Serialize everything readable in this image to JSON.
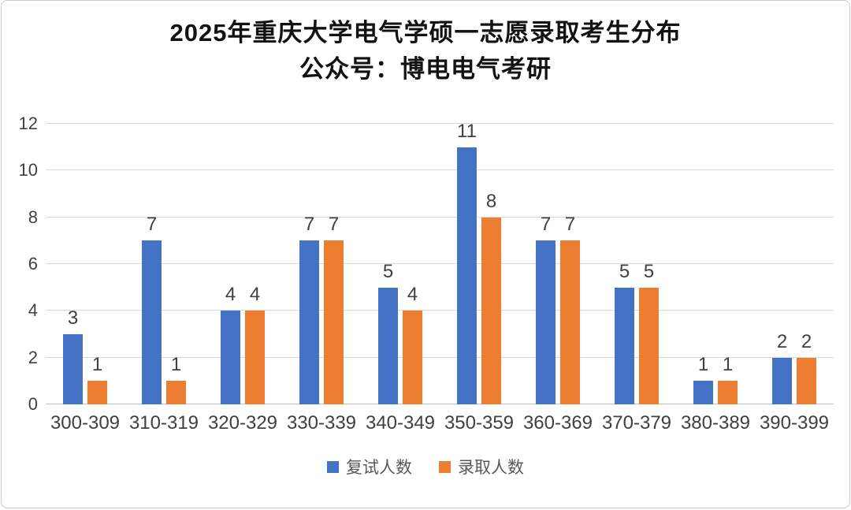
{
  "chart_data": {
    "type": "bar",
    "title": "2025年重庆大学电气学硕一志愿录取考生分布",
    "subtitle": "公众号：博电电气考研",
    "categories": [
      "300-309",
      "310-319",
      "320-329",
      "330-339",
      "340-349",
      "350-359",
      "360-369",
      "370-379",
      "380-389",
      "390-399"
    ],
    "series": [
      {
        "name": "复试人数",
        "color": "#4472C4",
        "values": [
          3,
          7,
          4,
          7,
          5,
          11,
          7,
          5,
          1,
          2
        ]
      },
      {
        "name": "录取人数",
        "color": "#ED7D31",
        "values": [
          1,
          1,
          4,
          7,
          4,
          8,
          7,
          5,
          1,
          2
        ]
      }
    ],
    "xlabel": "",
    "ylabel": "",
    "ylim": [
      0,
      12
    ],
    "yticks": [
      0,
      2,
      4,
      6,
      8,
      10,
      12
    ],
    "grid": "horizontal",
    "legend_position": "bottom",
    "data_labels": true
  },
  "colors": {
    "grid": "#d9d9d9",
    "baseline": "#bfbfbf",
    "axis_text": "#404040",
    "value_label_text": "#404040",
    "legend_text": "#595959",
    "title_text": "#121212"
  }
}
